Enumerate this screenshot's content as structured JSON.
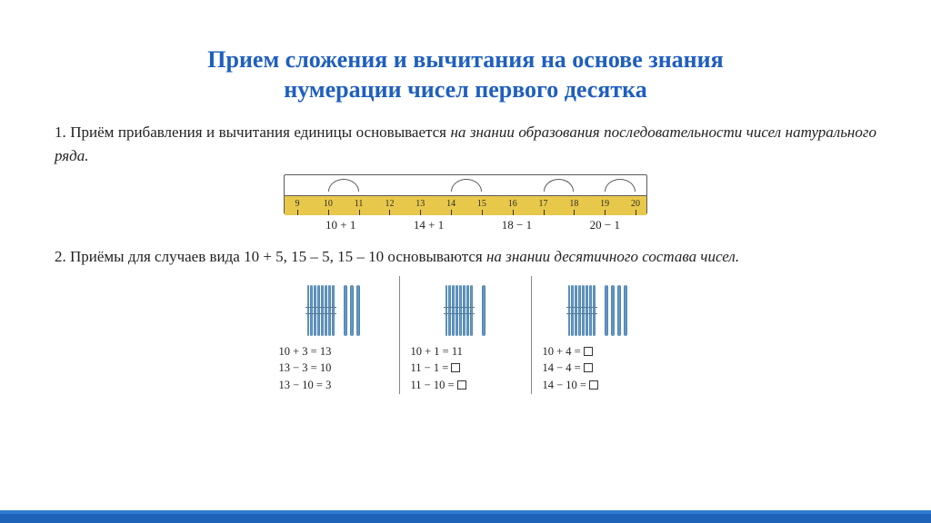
{
  "title_line1": "Прием сложения и вычитания на основе знания",
  "title_line2": "нумерации чисел первого десятка",
  "para1_lead": "1. Приём прибавления и вычитания единицы основывается ",
  "para1_italic": "на знании образования последовательности чисел натурального ряда.",
  "para2_lead": "2. Приёмы для случаев вида 10 + 5, 15 – 5, 15 – 10 основываются ",
  "para2_italic": "на знании десятичного состава чисел.",
  "numline": {
    "start": 9,
    "end": 20,
    "ticks": [
      9,
      10,
      11,
      12,
      13,
      14,
      15,
      16,
      17,
      18,
      19,
      20
    ],
    "arcs": [
      [
        10,
        11
      ],
      [
        14,
        15
      ],
      [
        17,
        18
      ],
      [
        19,
        20
      ]
    ],
    "ruler_color": "#e8c84a",
    "exprs": [
      "10 + 1",
      "14 + 1",
      "18 − 1",
      "20 − 1"
    ]
  },
  "sticks": {
    "stick_color_a": "#4a7ba8",
    "stick_color_b": "#6aa0cc",
    "cols": [
      {
        "loose": 3,
        "eqs": [
          "10 + 3 = 13",
          "13 − 3 = 10",
          "13 − 10 = 3"
        ],
        "boxlines": []
      },
      {
        "loose": 1,
        "eqs": [
          "10 + 1 = 11",
          "11 − 1 = ",
          "11 − 10 = "
        ],
        "boxlines": [
          1,
          2
        ]
      },
      {
        "loose": 4,
        "eqs": [
          "10 + 4 = ",
          "14 − 4 = ",
          "14 − 10 = "
        ],
        "boxlines": [
          0,
          1,
          2
        ]
      }
    ]
  },
  "colors": {
    "title": "#1f5fbf",
    "footer_light": "#2f7bd1",
    "footer_dark": "#1e63b8"
  }
}
